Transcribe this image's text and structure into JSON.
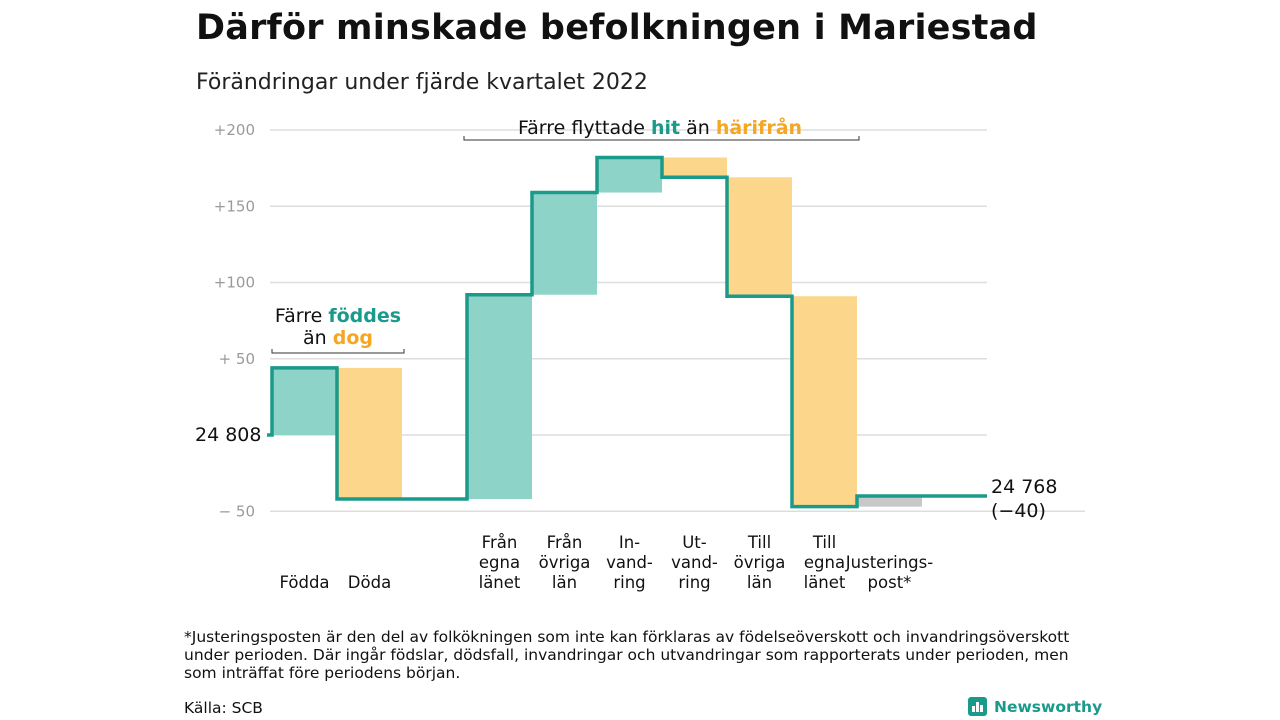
{
  "title": "Därför minskade befolkningen i Mariestad",
  "subtitle": "Förändringar under fjärde kvartalet 2022",
  "chart_data": {
    "type": "waterfall",
    "start_value": 24808,
    "start_label": "24 808",
    "end_label": "24 768",
    "end_change_label": "(−40)",
    "y_ticks": [
      {
        "value": 200,
        "label": "+200"
      },
      {
        "value": 150,
        "label": "+150"
      },
      {
        "value": 100,
        "label": "+100"
      },
      {
        "value": 50,
        "label": "+ 50"
      },
      {
        "value": 0,
        "label": ""
      },
      {
        "value": -50,
        "label": "− 50"
      }
    ],
    "ylim": [
      -50,
      200
    ],
    "steps": [
      {
        "label_lines": [
          "Födda"
        ],
        "change": 44,
        "kind": "in"
      },
      {
        "label_lines": [
          "Döda"
        ],
        "change": -86,
        "kind": "out"
      },
      {
        "label_lines": [
          "Från",
          "egna",
          "länet"
        ],
        "change": 134,
        "kind": "in"
      },
      {
        "label_lines": [
          "Från",
          "övriga",
          "län"
        ],
        "change": 67,
        "kind": "in"
      },
      {
        "label_lines": [
          "In-",
          "vand-",
          "ring"
        ],
        "change": 23,
        "kind": "in"
      },
      {
        "label_lines": [
          "Ut-",
          "vand-",
          "ring"
        ],
        "change": -13,
        "kind": "out"
      },
      {
        "label_lines": [
          "Till",
          "övriga",
          "län"
        ],
        "change": -78,
        "kind": "out"
      },
      {
        "label_lines": [
          "Till",
          "egna",
          "länet"
        ],
        "change": -138,
        "kind": "out"
      },
      {
        "label_lines": [
          "Justerings-",
          "post*"
        ],
        "change": 7,
        "kind": "adjust"
      }
    ],
    "annotations": [
      {
        "lines": [
          [
            {
              "text": "Färre ",
              "style": "plain"
            },
            {
              "text": "föddes",
              "style": "in"
            }
          ],
          [
            {
              "text": "än ",
              "style": "plain"
            },
            {
              "text": "dog",
              "style": "out"
            }
          ]
        ]
      },
      {
        "lines": [
          [
            {
              "text": "Färre flyttade ",
              "style": "plain"
            },
            {
              "text": "hit",
              "style": "in"
            },
            {
              "text": " än ",
              "style": "plain"
            },
            {
              "text": "härifrån",
              "style": "out"
            }
          ]
        ]
      }
    ],
    "colors": {
      "in": "#8dd3c7",
      "out": "#fcd68b",
      "adjust": "#c8c8c8",
      "line": "#1a9a8a",
      "grid": "#dddddd"
    }
  },
  "footnote": "*Justeringsposten är den del av folkökningen som inte kan förklaras av födelseöverskott och invandringsöverskott under perioden. Där ingår födslar, dödsfall, invandringar och utvandringar som rapporterats under perioden, men som inträffat före periodens början.",
  "source": "Källa: SCB",
  "brand": "Newsworthy"
}
